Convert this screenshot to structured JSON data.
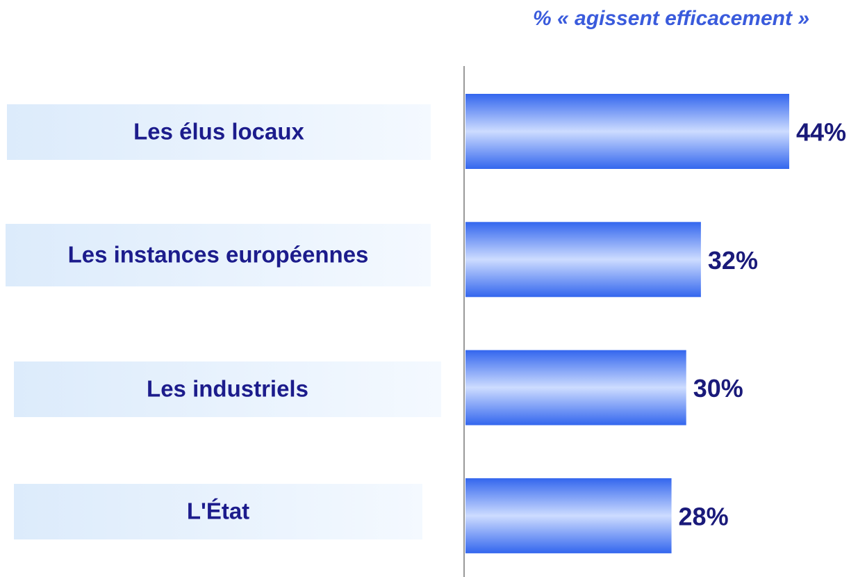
{
  "chart_data": {
    "type": "bar",
    "orientation": "horizontal",
    "title": "% « agissent efficacement »",
    "categories": [
      "Les élus locaux",
      "Les instances européennes",
      "Les industriels",
      "L'État"
    ],
    "values": [
      44,
      32,
      30,
      28
    ],
    "value_labels": [
      "44%",
      "32%",
      "30%",
      "28%"
    ],
    "color": "#3366ee"
  }
}
